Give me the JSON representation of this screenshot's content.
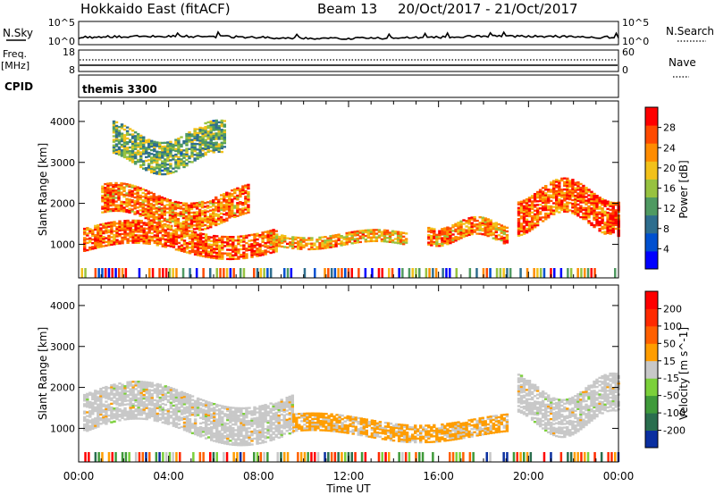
{
  "header": {
    "title": "Hokkaido East (fitACF)",
    "beam": "Beam 13",
    "date_range": "20/Oct/2017 - 21/Oct/2017"
  },
  "nsky_panel": {
    "label": "N.Sky",
    "left_ticks": [
      "10^5",
      "10^0"
    ],
    "right_ticks": [
      "10^5",
      "10^0"
    ],
    "right_label": "N.Search"
  },
  "freq_panel": {
    "label_top": "Freq.",
    "label_bottom": "[MHz]",
    "left_ticks": [
      "18",
      "8"
    ],
    "right_ticks": [
      "60",
      "0"
    ],
    "right_label": "Nave"
  },
  "cpid_panel": {
    "label": "CPID",
    "text": "themis 3300"
  },
  "time_axis": {
    "label": "Time UT",
    "ticks": [
      "00:00",
      "04:00",
      "08:00",
      "12:00",
      "16:00",
      "20:00",
      "00:00"
    ]
  },
  "chart_data": [
    {
      "type": "heatmap",
      "variable": "Power",
      "ylabel": "Slant Range [km]",
      "xlabel": "Time UT",
      "x_range_hours": [
        0,
        24
      ],
      "ylim": [
        180,
        4500
      ],
      "y_ticks": [
        1000,
        2000,
        3000,
        4000
      ],
      "colorbar": {
        "label": "Power [dB]",
        "ticks": [
          "4",
          "8",
          "12",
          "16",
          "20",
          "24",
          "28"
        ],
        "range": [
          0,
          32
        ],
        "colors": [
          "#0000ff",
          "#0050d0",
          "#2e6e8e",
          "#4f9a62",
          "#97c240",
          "#f2c11a",
          "#ff8c00",
          "#ff4a00",
          "#ff0000"
        ]
      },
      "features": [
        {
          "description": "lower echo band",
          "t_start_h": 0.2,
          "t_end_h": 8.8,
          "range_km": [
            700,
            1500
          ],
          "level_db": 26
        },
        {
          "description": "upper ascending band",
          "t_start_h": 1.0,
          "t_end_h": 7.5,
          "range_km": [
            1400,
            2400
          ],
          "level_db": 24
        },
        {
          "description": "far range scatter",
          "t_start_h": 1.5,
          "t_end_h": 6.5,
          "range_km": [
            2800,
            3900
          ],
          "level_db": 14
        },
        {
          "description": "afternoon band",
          "t_start_h": 8.5,
          "t_end_h": 14.5,
          "range_km": [
            900,
            1300
          ],
          "level_db": 22
        },
        {
          "description": "evening patch",
          "t_start_h": 15.5,
          "t_end_h": 19.0,
          "range_km": [
            1000,
            1600
          ],
          "level_db": 24
        },
        {
          "description": "late descending band",
          "t_start_h": 19.5,
          "t_end_h": 24.0,
          "range_km": [
            1300,
            2500
          ],
          "level_db": 26
        }
      ]
    },
    {
      "type": "heatmap",
      "variable": "Velocity",
      "ylabel": "Slant Range [km]",
      "xlabel": "Time UT",
      "x_range_hours": [
        0,
        24
      ],
      "ylim": [
        180,
        4500
      ],
      "y_ticks": [
        1000,
        2000,
        3000,
        4000
      ],
      "colorbar": {
        "label": "Velocity [m s^-1]",
        "ticks": [
          "200",
          "100",
          "50",
          "15",
          "-15",
          "-50",
          "-100",
          "-200"
        ],
        "range": [
          -250,
          250
        ],
        "colors": [
          "#0a2fa0",
          "#2a6e4e",
          "#3f9a3a",
          "#7bd03a",
          "#c8c8c8",
          "#ff9d00",
          "#ff6000",
          "#ff2a00",
          "#ff0000"
        ]
      },
      "features": [
        {
          "description": "ground scatter band",
          "t_start_h": 0.2,
          "t_end_h": 9.5,
          "range_km": [
            700,
            2000
          ],
          "level_ms": 0
        },
        {
          "description": "positive flow band",
          "t_start_h": 9.5,
          "t_end_h": 19.0,
          "range_km": [
            700,
            1300
          ],
          "level_ms": 40
        },
        {
          "description": "late ground scatter",
          "t_start_h": 19.5,
          "t_end_h": 24.0,
          "range_km": [
            900,
            2200
          ],
          "level_ms": 0
        }
      ]
    }
  ]
}
